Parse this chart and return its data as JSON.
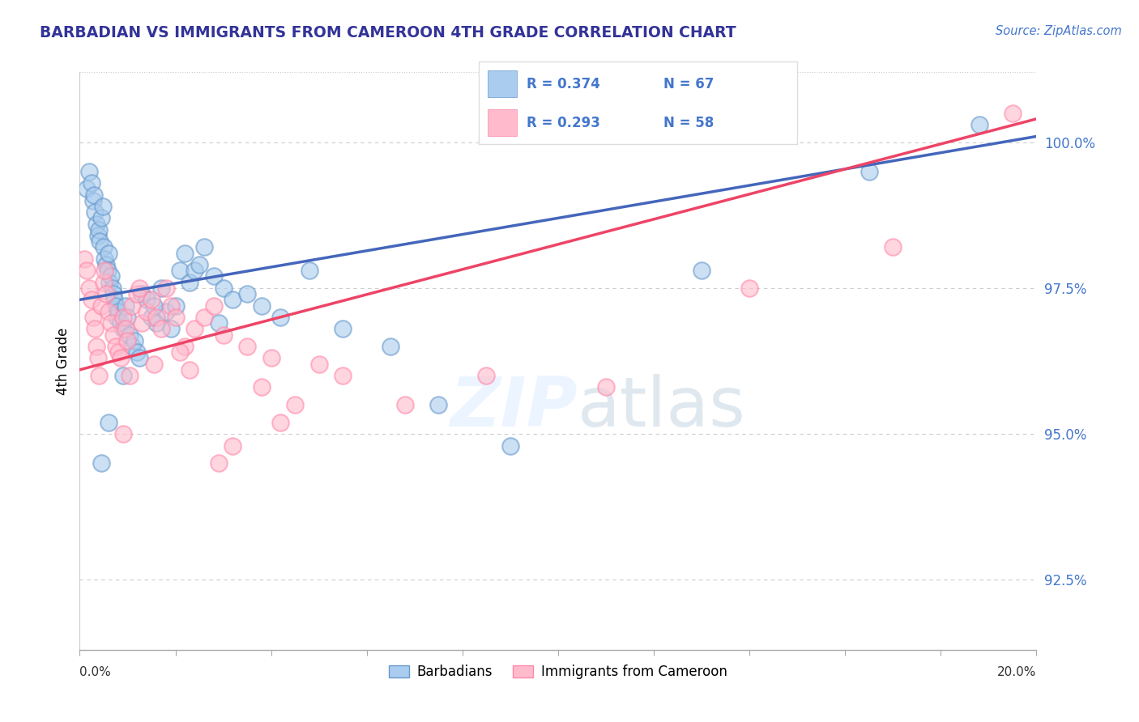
{
  "title": "BARBADIAN VS IMMIGRANTS FROM CAMEROON 4TH GRADE CORRELATION CHART",
  "source_text": "Source: ZipAtlas.com",
  "ylabel": "4th Grade",
  "xlim": [
    0.0,
    20.0
  ],
  "ylim": [
    91.3,
    101.2
  ],
  "yticks": [
    92.5,
    95.0,
    97.5,
    100.0
  ],
  "ytick_labels": [
    "92.5%",
    "95.0%",
    "97.5%",
    "100.0%"
  ],
  "barbadian_color": "#6699CC",
  "cameroon_color": "#FF99BB",
  "blue_line_color": "#4466BB",
  "pink_line_color": "#EE4466",
  "blue_R": "R = 0.374",
  "blue_N": "N = 67",
  "pink_R": "R = 0.293",
  "pink_N": "N = 58",
  "blue_scatter_x": [
    0.15,
    0.2,
    0.25,
    0.28,
    0.3,
    0.32,
    0.35,
    0.38,
    0.4,
    0.42,
    0.45,
    0.48,
    0.5,
    0.52,
    0.55,
    0.58,
    0.6,
    0.62,
    0.65,
    0.68,
    0.7,
    0.72,
    0.75,
    0.78,
    0.8,
    0.85,
    0.9,
    0.95,
    1.0,
    1.05,
    1.1,
    1.15,
    1.2,
    1.25,
    1.3,
    1.4,
    1.5,
    1.6,
    1.7,
    1.8,
    1.9,
    2.0,
    2.1,
    2.2,
    2.3,
    2.4,
    2.5,
    2.6,
    2.8,
    3.0,
    3.2,
    3.5,
    3.8,
    4.2,
    4.8,
    5.5,
    6.5,
    7.5,
    9.0,
    13.0,
    16.5,
    18.8,
    1.55,
    0.9,
    0.6,
    0.45,
    2.9
  ],
  "blue_scatter_y": [
    99.2,
    99.5,
    99.3,
    99.0,
    99.1,
    98.8,
    98.6,
    98.4,
    98.5,
    98.3,
    98.7,
    98.9,
    98.2,
    98.0,
    97.9,
    97.8,
    98.1,
    97.6,
    97.7,
    97.5,
    97.4,
    97.3,
    97.2,
    97.0,
    97.1,
    96.9,
    96.8,
    97.2,
    97.0,
    96.7,
    96.5,
    96.6,
    96.4,
    96.3,
    97.4,
    97.3,
    97.0,
    96.9,
    97.5,
    97.1,
    96.8,
    97.2,
    97.8,
    98.1,
    97.6,
    97.8,
    97.9,
    98.2,
    97.7,
    97.5,
    97.3,
    97.4,
    97.2,
    97.0,
    97.8,
    96.8,
    96.5,
    95.5,
    94.8,
    97.8,
    99.5,
    100.3,
    97.2,
    96.0,
    95.2,
    94.5,
    96.9
  ],
  "pink_scatter_x": [
    0.1,
    0.15,
    0.2,
    0.25,
    0.28,
    0.32,
    0.35,
    0.38,
    0.4,
    0.45,
    0.5,
    0.55,
    0.6,
    0.65,
    0.7,
    0.75,
    0.8,
    0.85,
    0.9,
    0.95,
    1.0,
    1.1,
    1.2,
    1.3,
    1.4,
    1.5,
    1.6,
    1.7,
    1.8,
    1.9,
    2.0,
    2.2,
    2.4,
    2.6,
    2.8,
    3.0,
    3.5,
    4.0,
    4.5,
    5.5,
    1.55,
    2.1,
    2.3,
    1.05,
    0.52,
    1.25,
    3.8,
    5.0,
    6.8,
    8.5,
    11.0,
    14.0,
    17.0,
    19.5,
    0.9,
    2.9,
    4.2,
    3.2
  ],
  "pink_scatter_y": [
    98.0,
    97.8,
    97.5,
    97.3,
    97.0,
    96.8,
    96.5,
    96.3,
    96.0,
    97.2,
    97.6,
    97.4,
    97.1,
    96.9,
    96.7,
    96.5,
    96.4,
    96.3,
    97.0,
    96.8,
    96.6,
    97.2,
    97.4,
    96.9,
    97.1,
    97.3,
    97.0,
    96.8,
    97.5,
    97.2,
    97.0,
    96.5,
    96.8,
    97.0,
    97.2,
    96.7,
    96.5,
    96.3,
    95.5,
    96.0,
    96.2,
    96.4,
    96.1,
    96.0,
    97.8,
    97.5,
    95.8,
    96.2,
    95.5,
    96.0,
    95.8,
    97.5,
    98.2,
    100.5,
    95.0,
    94.5,
    95.2,
    94.8
  ]
}
